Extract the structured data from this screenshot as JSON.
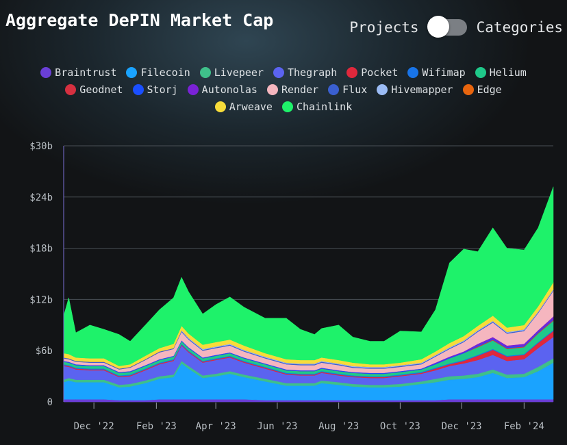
{
  "header": {
    "title": "Aggregate DePIN Market Cap",
    "toggle_left": "Projects",
    "toggle_right": "Categories"
  },
  "chart_data": {
    "type": "area",
    "stacked": true,
    "ylim": [
      0,
      30
    ],
    "y_ticks": [
      0,
      6,
      12,
      18,
      24,
      30
    ],
    "y_tick_labels": [
      "0",
      "$6b",
      "$12b",
      "$18b",
      "$24b",
      "$30b"
    ],
    "x_tick_labels": [
      "Dec '22",
      "Feb '23",
      "Apr '23",
      "Jun '23",
      "Aug '23",
      "Oct '23",
      "Dec '23",
      "Feb '24"
    ],
    "x_tick_dates": [
      "2022-12-01",
      "2023-02-01",
      "2023-04-01",
      "2023-06-01",
      "2023-08-01",
      "2023-10-01",
      "2023-12-01",
      "2024-02-01"
    ],
    "x_range": [
      "2022-11-01",
      "2024-03-01"
    ],
    "grid": true,
    "legend_position": "top",
    "x": [
      "2022-11-01",
      "2022-11-06",
      "2022-11-13",
      "2022-11-27",
      "2022-12-11",
      "2022-12-26",
      "2023-01-06",
      "2023-01-21",
      "2023-02-04",
      "2023-02-18",
      "2023-02-26",
      "2023-03-05",
      "2023-03-19",
      "2023-04-01",
      "2023-04-15",
      "2023-04-29",
      "2023-05-20",
      "2023-06-10",
      "2023-06-24",
      "2023-07-08",
      "2023-07-15",
      "2023-08-01",
      "2023-08-15",
      "2023-09-01",
      "2023-09-15",
      "2023-10-01",
      "2023-10-22",
      "2023-11-05",
      "2023-11-19",
      "2023-12-03",
      "2023-12-17",
      "2024-01-01",
      "2024-01-15",
      "2024-02-01",
      "2024-02-15",
      "2024-03-01"
    ],
    "series": [
      {
        "name": "Braintrust",
        "color": "#6a3fd6",
        "values": [
          0.3,
          0.3,
          0.3,
          0.3,
          0.3,
          0.2,
          0.2,
          0.2,
          0.3,
          0.3,
          0.3,
          0.3,
          0.3,
          0.3,
          0.3,
          0.3,
          0.2,
          0.2,
          0.2,
          0.2,
          0.2,
          0.2,
          0.2,
          0.2,
          0.2,
          0.2,
          0.2,
          0.2,
          0.3,
          0.3,
          0.3,
          0.3,
          0.3,
          0.3,
          0.3,
          0.3
        ]
      },
      {
        "name": "Filecoin",
        "color": "#1aa3ff",
        "values": [
          2.0,
          2.2,
          2.0,
          2.0,
          2.0,
          1.5,
          1.6,
          2.0,
          2.4,
          2.6,
          4.2,
          3.6,
          2.5,
          2.7,
          3.0,
          2.6,
          2.2,
          1.7,
          1.7,
          1.7,
          2.0,
          1.8,
          1.6,
          1.5,
          1.5,
          1.6,
          1.9,
          2.1,
          2.3,
          2.4,
          2.6,
          3.1,
          2.5,
          2.6,
          3.3,
          4.3
        ]
      },
      {
        "name": "Livepeer",
        "color": "#3fc08a",
        "values": [
          0.3,
          0.3,
          0.3,
          0.3,
          0.3,
          0.3,
          0.3,
          0.3,
          0.3,
          0.3,
          0.3,
          0.3,
          0.3,
          0.3,
          0.3,
          0.3,
          0.3,
          0.3,
          0.3,
          0.3,
          0.3,
          0.3,
          0.3,
          0.3,
          0.3,
          0.3,
          0.3,
          0.4,
          0.4,
          0.4,
          0.4,
          0.4,
          0.4,
          0.4,
          0.5,
          0.5
        ]
      },
      {
        "name": "Thegraph",
        "color": "#5b63f0",
        "values": [
          1.6,
          1.3,
          1.2,
          1.1,
          1.1,
          0.9,
          0.9,
          1.2,
          1.4,
          1.6,
          1.8,
          1.6,
          1.5,
          1.6,
          1.6,
          1.4,
          1.2,
          1.0,
          0.9,
          0.9,
          0.9,
          0.8,
          0.8,
          0.8,
          0.8,
          0.9,
          0.9,
          1.0,
          1.2,
          1.4,
          1.6,
          1.7,
          1.6,
          1.7,
          2.2,
          2.5
        ]
      },
      {
        "name": "Pocket",
        "color": "#e0283c",
        "values": [
          0.1,
          0.1,
          0.1,
          0.1,
          0.1,
          0.1,
          0.1,
          0.1,
          0.1,
          0.1,
          0.1,
          0.1,
          0.1,
          0.1,
          0.1,
          0.1,
          0.1,
          0.1,
          0.1,
          0.1,
          0.1,
          0.1,
          0.1,
          0.1,
          0.1,
          0.1,
          0.1,
          0.2,
          0.2,
          0.3,
          0.5,
          0.6,
          0.5,
          0.5,
          0.6,
          0.7
        ]
      },
      {
        "name": "Wifimap",
        "color": "#1874e8",
        "values": [
          0.1,
          0.1,
          0.1,
          0.1,
          0.1,
          0.1,
          0.1,
          0.1,
          0.1,
          0.1,
          0.1,
          0.1,
          0.1,
          0.1,
          0.1,
          0.1,
          0.1,
          0.1,
          0.1,
          0.1,
          0.1,
          0.1,
          0.1,
          0.1,
          0.1,
          0.1,
          0.1,
          0.1,
          0.1,
          0.1,
          0.1,
          0.1,
          0.1,
          0.1,
          0.1,
          0.1
        ]
      },
      {
        "name": "Helium",
        "color": "#1fc98a",
        "values": [
          0.3,
          0.3,
          0.3,
          0.3,
          0.3,
          0.3,
          0.3,
          0.3,
          0.3,
          0.3,
          0.3,
          0.3,
          0.3,
          0.3,
          0.3,
          0.3,
          0.3,
          0.3,
          0.3,
          0.3,
          0.3,
          0.3,
          0.3,
          0.3,
          0.3,
          0.3,
          0.3,
          0.4,
          0.6,
          0.8,
          0.9,
          1.0,
          0.8,
          0.8,
          1.0,
          1.1
        ]
      },
      {
        "name": "Geodnet",
        "color": "#d63040",
        "values": [
          0.0,
          0.0,
          0.0,
          0.0,
          0.0,
          0.0,
          0.0,
          0.0,
          0.0,
          0.0,
          0.0,
          0.0,
          0.0,
          0.0,
          0.0,
          0.0,
          0.0,
          0.0,
          0.0,
          0.0,
          0.0,
          0.0,
          0.0,
          0.0,
          0.0,
          0.0,
          0.0,
          0.0,
          0.0,
          0.0,
          0.1,
          0.1,
          0.1,
          0.1,
          0.1,
          0.1
        ]
      },
      {
        "name": "Storj",
        "color": "#1a4fff",
        "values": [
          0.1,
          0.1,
          0.1,
          0.1,
          0.1,
          0.1,
          0.1,
          0.1,
          0.1,
          0.1,
          0.1,
          0.1,
          0.1,
          0.1,
          0.1,
          0.1,
          0.1,
          0.1,
          0.1,
          0.1,
          0.1,
          0.1,
          0.1,
          0.1,
          0.1,
          0.1,
          0.1,
          0.1,
          0.1,
          0.1,
          0.1,
          0.1,
          0.1,
          0.1,
          0.1,
          0.1
        ]
      },
      {
        "name": "Autonolas",
        "color": "#7a22d6",
        "values": [
          0.0,
          0.0,
          0.0,
          0.0,
          0.0,
          0.0,
          0.0,
          0.0,
          0.0,
          0.0,
          0.0,
          0.0,
          0.0,
          0.0,
          0.0,
          0.0,
          0.0,
          0.0,
          0.0,
          0.0,
          0.0,
          0.0,
          0.0,
          0.0,
          0.0,
          0.0,
          0.0,
          0.1,
          0.1,
          0.1,
          0.2,
          0.2,
          0.2,
          0.2,
          0.2,
          0.3
        ]
      },
      {
        "name": "Render",
        "color": "#f5b6bf",
        "values": [
          0.3,
          0.3,
          0.3,
          0.3,
          0.3,
          0.3,
          0.4,
          0.6,
          0.8,
          0.8,
          1.0,
          0.9,
          0.8,
          0.8,
          0.8,
          0.7,
          0.6,
          0.6,
          0.6,
          0.6,
          0.6,
          0.6,
          0.5,
          0.5,
          0.5,
          0.5,
          0.5,
          0.7,
          0.9,
          1.1,
          1.4,
          1.7,
          1.4,
          1.5,
          2.0,
          3.0
        ]
      },
      {
        "name": "Flux",
        "color": "#3a5fd0",
        "values": [
          0.1,
          0.1,
          0.1,
          0.1,
          0.1,
          0.1,
          0.1,
          0.1,
          0.1,
          0.1,
          0.1,
          0.1,
          0.1,
          0.1,
          0.1,
          0.1,
          0.1,
          0.1,
          0.1,
          0.1,
          0.1,
          0.1,
          0.1,
          0.1,
          0.1,
          0.1,
          0.1,
          0.1,
          0.1,
          0.1,
          0.1,
          0.1,
          0.1,
          0.1,
          0.1,
          0.1
        ]
      },
      {
        "name": "Hivemapper",
        "color": "#9bbcf5",
        "values": [
          0.0,
          0.0,
          0.0,
          0.0,
          0.0,
          0.0,
          0.0,
          0.0,
          0.0,
          0.0,
          0.1,
          0.1,
          0.1,
          0.1,
          0.1,
          0.1,
          0.1,
          0.1,
          0.1,
          0.1,
          0.1,
          0.1,
          0.1,
          0.1,
          0.1,
          0.1,
          0.1,
          0.1,
          0.1,
          0.1,
          0.1,
          0.1,
          0.1,
          0.1,
          0.1,
          0.1
        ]
      },
      {
        "name": "Edge",
        "color": "#e8650e",
        "values": [
          0.0,
          0.0,
          0.0,
          0.0,
          0.0,
          0.0,
          0.0,
          0.0,
          0.0,
          0.0,
          0.0,
          0.0,
          0.0,
          0.0,
          0.0,
          0.0,
          0.0,
          0.0,
          0.0,
          0.0,
          0.0,
          0.0,
          0.0,
          0.0,
          0.0,
          0.0,
          0.0,
          0.0,
          0.0,
          0.0,
          0.0,
          0.0,
          0.0,
          0.0,
          0.0,
          0.0
        ]
      },
      {
        "name": "Arweave",
        "color": "#f7dc3a",
        "values": [
          0.5,
          0.5,
          0.4,
          0.4,
          0.4,
          0.3,
          0.3,
          0.4,
          0.4,
          0.5,
          0.5,
          0.5,
          0.5,
          0.5,
          0.5,
          0.5,
          0.4,
          0.4,
          0.4,
          0.4,
          0.4,
          0.4,
          0.4,
          0.3,
          0.3,
          0.3,
          0.4,
          0.4,
          0.5,
          0.5,
          0.5,
          0.6,
          0.5,
          0.5,
          0.6,
          0.8
        ]
      },
      {
        "name": "Chainlink",
        "color": "#1ef26a",
        "values": [
          4.4,
          6.6,
          2.9,
          3.9,
          3.4,
          3.7,
          2.7,
          3.6,
          4.5,
          5.4,
          5.7,
          4.9,
          3.6,
          4.4,
          5.0,
          4.5,
          4.1,
          4.8,
          3.6,
          3.0,
          3.4,
          4.1,
          3.0,
          2.7,
          2.7,
          3.7,
          3.2,
          4.9,
          9.4,
          10.2,
          8.7,
          10.3,
          9.3,
          8.8,
          9.2,
          11.2
        ]
      }
    ]
  }
}
